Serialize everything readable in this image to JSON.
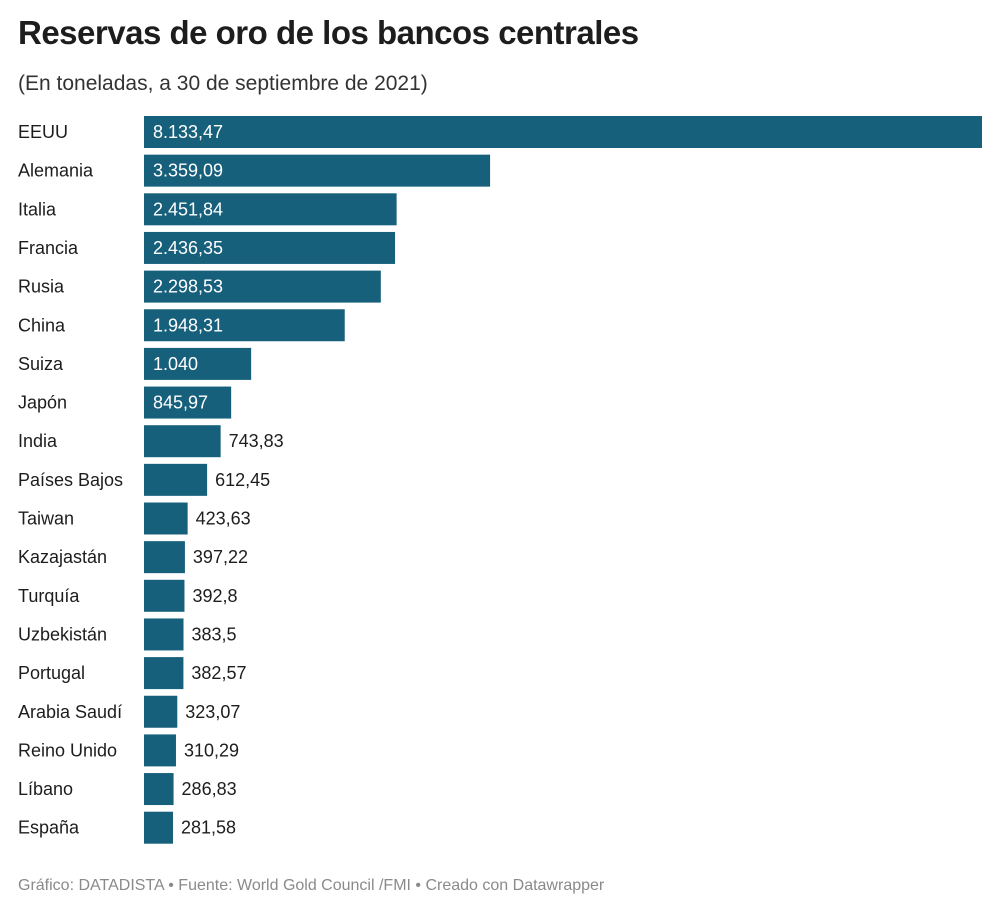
{
  "title": "Reservas de oro de los bancos centrales",
  "subtitle": "(En toneladas, a 30 de septiembre de 2021)",
  "footer": "Gráfico: DATADISTA • Fuente: World Gold Council /FMI • Creado con Datawrapper",
  "colors": {
    "bar": "#17607c",
    "label_inside": "#ffffff",
    "label_outside": "#1d1d1d",
    "category": "#1d1d1d"
  },
  "chart_data": {
    "type": "bar",
    "orientation": "horizontal",
    "title": "Reservas de oro de los bancos centrales",
    "subtitle": "(En toneladas, a 30 de septiembre de 2021)",
    "categories": [
      "EEUU",
      "Alemania",
      "Italia",
      "Francia",
      "Rusia",
      "China",
      "Suiza",
      "Japón",
      "India",
      "Países Bajos",
      "Taiwan",
      "Kazajastán",
      "Turquía",
      "Uzbekistán",
      "Portugal",
      "Arabia Saudí",
      "Reino Unido",
      "Líbano",
      "España"
    ],
    "values": [
      8133.47,
      3359.09,
      2451.84,
      2436.35,
      2298.53,
      1948.31,
      1040,
      845.97,
      743.83,
      612.45,
      423.63,
      397.22,
      392.8,
      383.5,
      382.57,
      323.07,
      310.29,
      286.83,
      281.58
    ],
    "value_labels": [
      "8.133,47",
      "3.359,09",
      "2.451,84",
      "2.436,35",
      "2.298,53",
      "1.948,31",
      "1.040",
      "845,97",
      "743,83",
      "612,45",
      "423,63",
      "397,22",
      "392,8",
      "383,5",
      "382,57",
      "323,07",
      "310,29",
      "286,83",
      "281,58"
    ],
    "xlim": [
      0,
      8133.47
    ],
    "grid": false,
    "legend": "none"
  }
}
